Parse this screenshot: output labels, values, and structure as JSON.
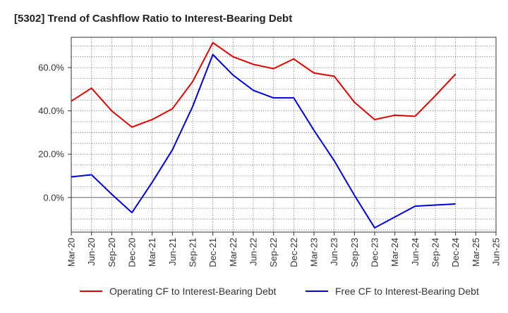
{
  "chart_data": {
    "type": "line",
    "title": "[5302]  Trend of Cashflow Ratio to Interest-Bearing Debt",
    "xlabel": "",
    "ylabel": "",
    "categories": [
      "Mar-20",
      "Jun-20",
      "Sep-20",
      "Dec-20",
      "Mar-21",
      "Jun-21",
      "Sep-21",
      "Dec-21",
      "Mar-22",
      "Jun-22",
      "Sep-22",
      "Dec-22",
      "Mar-23",
      "Jun-23",
      "Sep-23",
      "Dec-23",
      "Mar-24",
      "Jun-24",
      "Sep-24",
      "Dec-24",
      "Mar-25",
      "Jun-25"
    ],
    "ylim": [
      -16,
      74
    ],
    "yticks": [
      0,
      20,
      40,
      60
    ],
    "ytick_labels": [
      "0.0%",
      "20.0%",
      "40.0%",
      "60.0%"
    ],
    "grid": true,
    "legend_position": "bottom",
    "series": [
      {
        "name": "Operating CF to Interest-Bearing Debt",
        "color": "#e00000",
        "values": [
          44.5,
          50.5,
          40.0,
          32.5,
          36.0,
          41.0,
          53.5,
          71.5,
          65.0,
          61.5,
          59.5,
          64.0,
          57.5,
          56.0,
          44.0,
          36.0,
          38.0,
          37.5,
          47.0,
          57.0,
          null,
          null
        ]
      },
      {
        "name": "Free CF to Interest-Bearing Debt",
        "color": "#0000dd",
        "values": [
          9.5,
          10.5,
          1.5,
          -7.0,
          7.0,
          22.0,
          42.0,
          66.0,
          56.5,
          49.5,
          46.0,
          46.0,
          31.0,
          17.0,
          1.0,
          -14.0,
          -9.0,
          -4.0,
          -3.5,
          -3.0,
          null,
          null
        ]
      }
    ]
  }
}
